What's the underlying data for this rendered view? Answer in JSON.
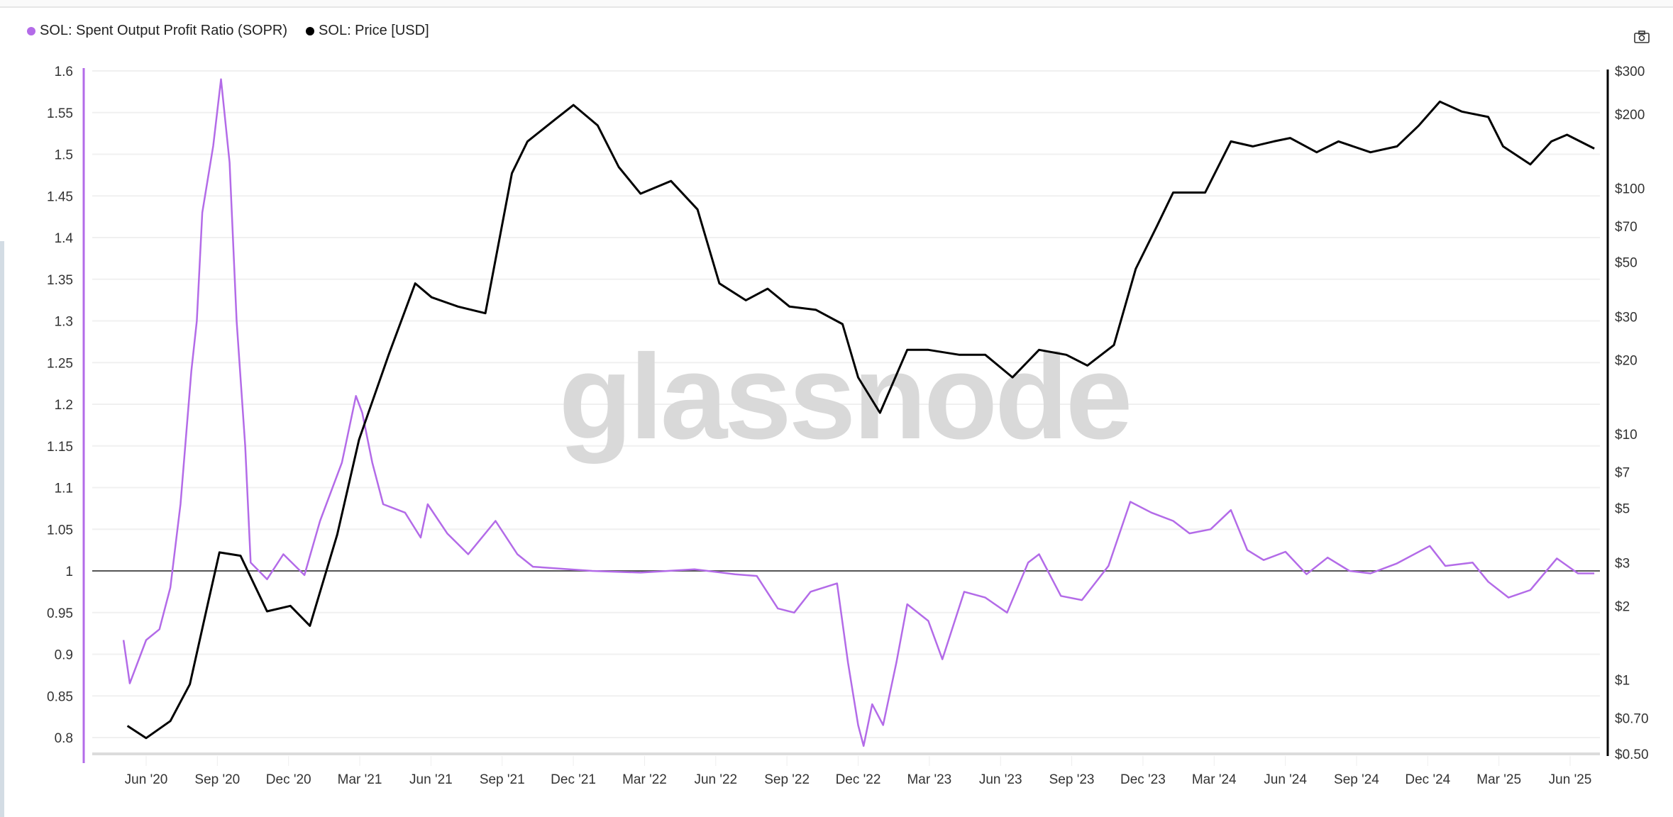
{
  "chart_data": {
    "type": "line",
    "title": "",
    "watermark": "glassnode",
    "legend_placement": "top-left",
    "grid": true,
    "colors": {
      "sopr": "#b36be8",
      "price": "#000000",
      "reference": "#555555"
    },
    "x_tick_labels": [
      "Jun '20",
      "Sep '20",
      "Dec '20",
      "Mar '21",
      "Jun '21",
      "Sep '21",
      "Dec '21",
      "Mar '22",
      "Jun '22",
      "Sep '22",
      "Dec '22",
      "Mar '23",
      "Jun '23",
      "Sep '23",
      "Dec '23",
      "Mar '24",
      "Jun '24",
      "Sep '24",
      "Dec '24",
      "Mar '25",
      "Jun '25"
    ],
    "x_range": [
      "2020-05-03",
      "2025-07-05"
    ],
    "y_left": {
      "ticks": [
        "1.6",
        "1.55",
        "1.5",
        "1.45",
        "1.4",
        "1.35",
        "1.3",
        "1.25",
        "1.2",
        "1.15",
        "1.1",
        "1.05",
        "1",
        "0.95",
        "0.9",
        "0.85",
        "0.8"
      ],
      "range": [
        0.8,
        1.6
      ],
      "reference_line": 1
    },
    "y_right": {
      "scale": "log",
      "ticks": [
        "$300",
        "$200",
        "$100",
        "$70",
        "$50",
        "$30",
        "$20",
        "$10",
        "$7",
        "$5",
        "$3",
        "$2",
        "$1",
        "$0.70",
        "$0.50"
      ],
      "tick_values": [
        300,
        200,
        100,
        70,
        50,
        30,
        20,
        10,
        7,
        5,
        3,
        2,
        1,
        0.7,
        0.5
      ],
      "range": [
        0.5,
        300
      ]
    },
    "series": [
      {
        "name": "SOL: Spent Output Profit Ratio (SOPR)",
        "axis": "left",
        "points": [
          [
            "2020-05-03",
            0.917
          ],
          [
            "2020-05-11",
            0.865
          ],
          [
            "2020-06-01",
            0.917
          ],
          [
            "2020-06-18",
            0.93
          ],
          [
            "2020-07-02",
            0.98
          ],
          [
            "2020-07-15",
            1.08
          ],
          [
            "2020-07-29",
            1.24
          ],
          [
            "2020-08-05",
            1.3
          ],
          [
            "2020-08-12",
            1.43
          ],
          [
            "2020-08-26",
            1.51
          ],
          [
            "2020-09-05",
            1.59
          ],
          [
            "2020-09-16",
            1.49
          ],
          [
            "2020-09-25",
            1.3
          ],
          [
            "2020-10-06",
            1.15
          ],
          [
            "2020-10-13",
            1.01
          ],
          [
            "2020-11-03",
            0.99
          ],
          [
            "2020-11-24",
            1.02
          ],
          [
            "2020-12-21",
            0.995
          ],
          [
            "2021-01-10",
            1.06
          ],
          [
            "2021-02-07",
            1.13
          ],
          [
            "2021-02-25",
            1.21
          ],
          [
            "2021-03-05",
            1.19
          ],
          [
            "2021-03-18",
            1.13
          ],
          [
            "2021-04-01",
            1.08
          ],
          [
            "2021-04-29",
            1.07
          ],
          [
            "2021-05-19",
            1.04
          ],
          [
            "2021-05-28",
            1.08
          ],
          [
            "2021-06-22",
            1.045
          ],
          [
            "2021-07-19",
            1.02
          ],
          [
            "2021-08-23",
            1.06
          ],
          [
            "2021-09-20",
            1.02
          ],
          [
            "2021-10-10",
            1.005
          ],
          [
            "2021-12-25",
            1.0
          ],
          [
            "2022-02-25",
            0.998
          ],
          [
            "2022-05-05",
            1.002
          ],
          [
            "2022-06-26",
            0.996
          ],
          [
            "2022-07-24",
            0.994
          ],
          [
            "2022-08-20",
            0.955
          ],
          [
            "2022-09-10",
            0.95
          ],
          [
            "2022-10-01",
            0.975
          ],
          [
            "2022-11-04",
            0.985
          ],
          [
            "2022-11-18",
            0.89
          ],
          [
            "2022-12-01",
            0.815
          ],
          [
            "2022-12-08",
            0.79
          ],
          [
            "2022-12-19",
            0.84
          ],
          [
            "2023-01-02",
            0.815
          ],
          [
            "2023-01-19",
            0.89
          ],
          [
            "2023-02-02",
            0.96
          ],
          [
            "2023-03-01",
            0.94
          ],
          [
            "2023-03-19",
            0.894
          ],
          [
            "2023-04-16",
            0.975
          ],
          [
            "2023-05-13",
            0.968
          ],
          [
            "2023-06-10",
            0.95
          ],
          [
            "2023-07-07",
            1.01
          ],
          [
            "2023-07-21",
            1.02
          ],
          [
            "2023-08-18",
            0.97
          ],
          [
            "2023-09-14",
            0.965
          ],
          [
            "2023-10-18",
            1.006
          ],
          [
            "2023-11-15",
            1.083
          ],
          [
            "2023-12-12",
            1.07
          ],
          [
            "2024-01-09",
            1.06
          ],
          [
            "2024-01-30",
            1.045
          ],
          [
            "2024-02-26",
            1.05
          ],
          [
            "2024-03-23",
            1.073
          ],
          [
            "2024-04-13",
            1.025
          ],
          [
            "2024-05-04",
            1.013
          ],
          [
            "2024-06-01",
            1.023
          ],
          [
            "2024-06-28",
            0.996
          ],
          [
            "2024-07-25",
            1.016
          ],
          [
            "2024-08-22",
            1.0
          ],
          [
            "2024-09-18",
            0.997
          ],
          [
            "2024-10-22",
            1.009
          ],
          [
            "2024-12-03",
            1.03
          ],
          [
            "2024-12-23",
            1.006
          ],
          [
            "2025-01-27",
            1.01
          ],
          [
            "2025-02-16",
            0.987
          ],
          [
            "2025-03-14",
            0.968
          ],
          [
            "2025-04-11",
            0.977
          ],
          [
            "2025-05-15",
            1.015
          ],
          [
            "2025-06-11",
            0.997
          ],
          [
            "2025-07-02",
            0.997
          ]
        ]
      },
      {
        "name": "SOL: Price [USD]",
        "axis": "right",
        "points": [
          [
            "2020-05-08",
            0.65
          ],
          [
            "2020-06-01",
            0.58
          ],
          [
            "2020-07-02",
            0.68
          ],
          [
            "2020-07-27",
            0.96
          ],
          [
            "2020-08-20",
            2.1
          ],
          [
            "2020-09-03",
            3.3
          ],
          [
            "2020-09-30",
            3.2
          ],
          [
            "2020-11-03",
            1.9
          ],
          [
            "2020-12-03",
            2.0
          ],
          [
            "2020-12-28",
            1.66
          ],
          [
            "2021-02-01",
            3.9
          ],
          [
            "2021-03-01",
            9.5
          ],
          [
            "2021-04-08",
            21
          ],
          [
            "2021-05-12",
            41
          ],
          [
            "2021-06-02",
            36
          ],
          [
            "2021-07-06",
            33
          ],
          [
            "2021-08-10",
            31
          ],
          [
            "2021-09-13",
            115
          ],
          [
            "2021-10-03",
            155
          ],
          [
            "2021-11-07",
            190
          ],
          [
            "2021-12-01",
            218
          ],
          [
            "2022-01-01",
            180
          ],
          [
            "2022-01-28",
            122
          ],
          [
            "2022-02-25",
            95
          ],
          [
            "2022-04-05",
            107
          ],
          [
            "2022-05-09",
            82
          ],
          [
            "2022-06-06",
            41
          ],
          [
            "2022-07-10",
            35
          ],
          [
            "2022-08-07",
            39
          ],
          [
            "2022-09-04",
            33
          ],
          [
            "2022-10-08",
            32
          ],
          [
            "2022-11-11",
            28
          ],
          [
            "2022-12-01",
            17
          ],
          [
            "2022-12-29",
            12.2
          ],
          [
            "2023-02-02",
            22
          ],
          [
            "2023-03-01",
            22
          ],
          [
            "2023-04-10",
            21
          ],
          [
            "2023-05-13",
            21
          ],
          [
            "2023-06-17",
            17
          ],
          [
            "2023-07-21",
            22
          ],
          [
            "2023-08-25",
            21
          ],
          [
            "2023-09-21",
            19
          ],
          [
            "2023-10-25",
            23
          ],
          [
            "2023-11-22",
            47
          ],
          [
            "2023-12-19",
            70
          ],
          [
            "2024-01-09",
            96
          ],
          [
            "2024-02-19",
            96
          ],
          [
            "2024-03-23",
            155
          ],
          [
            "2024-04-20",
            148
          ],
          [
            "2024-05-17",
            155
          ],
          [
            "2024-06-07",
            160
          ],
          [
            "2024-07-11",
            140
          ],
          [
            "2024-08-08",
            155
          ],
          [
            "2024-09-18",
            140
          ],
          [
            "2024-10-22",
            148
          ],
          [
            "2024-11-19",
            180
          ],
          [
            "2024-12-16",
            225
          ],
          [
            "2025-01-13",
            205
          ],
          [
            "2025-02-16",
            195
          ],
          [
            "2025-03-07",
            148
          ],
          [
            "2025-04-11",
            125
          ],
          [
            "2025-05-08",
            155
          ],
          [
            "2025-05-28",
            165
          ],
          [
            "2025-07-02",
            145
          ]
        ]
      }
    ]
  },
  "legend": {
    "sopr_label": "SOL: Spent Output Profit Ratio (SOPR)",
    "price_label": "SOL: Price [USD]"
  },
  "toolbar": {
    "screenshot_icon": "camera-icon"
  }
}
